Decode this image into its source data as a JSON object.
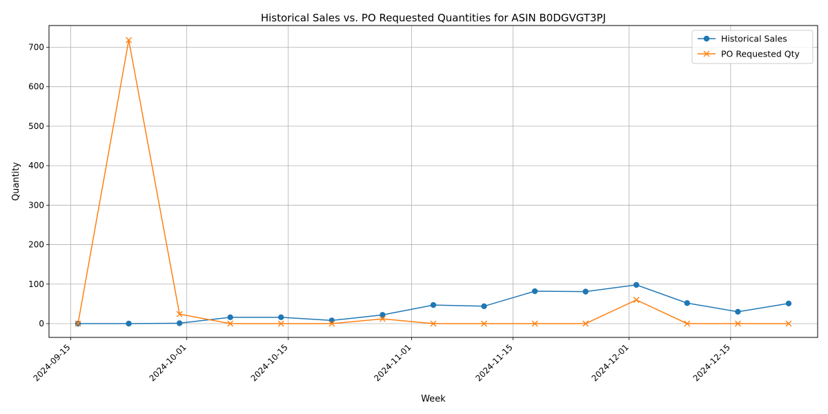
{
  "chart_data": {
    "type": "line",
    "title": "Historical Sales vs. PO Requested Quantities for ASIN B0DGVGT3PJ",
    "xlabel": "Week",
    "ylabel": "Quantity",
    "x": [
      "2024-09-16",
      "2024-09-23",
      "2024-09-30",
      "2024-10-07",
      "2024-10-14",
      "2024-10-21",
      "2024-10-28",
      "2024-11-04",
      "2024-11-11",
      "2024-11-18",
      "2024-11-25",
      "2024-12-02",
      "2024-12-09",
      "2024-12-16",
      "2024-12-23"
    ],
    "xlim": [
      "2024-09-12",
      "2024-12-27"
    ],
    "ylim": [
      -35,
      755
    ],
    "x_ticks": [
      "2024-09-15",
      "2024-10-01",
      "2024-10-15",
      "2024-11-01",
      "2024-11-15",
      "2024-12-01",
      "2024-12-15"
    ],
    "y_ticks": [
      0,
      100,
      200,
      300,
      400,
      500,
      600,
      700
    ],
    "grid": true,
    "legend_position": "top-right",
    "series": [
      {
        "name": "Historical Sales",
        "color": "#1f77b4",
        "marker": "circle",
        "values": [
          0,
          0,
          1,
          16,
          16,
          8,
          22,
          47,
          44,
          82,
          81,
          98,
          52,
          30,
          51
        ]
      },
      {
        "name": "PO Requested Qty",
        "color": "#ff7f0e",
        "marker": "x",
        "values": [
          0,
          718,
          24,
          0,
          0,
          0,
          12,
          0,
          0,
          0,
          0,
          60,
          0,
          0,
          0
        ]
      }
    ]
  }
}
